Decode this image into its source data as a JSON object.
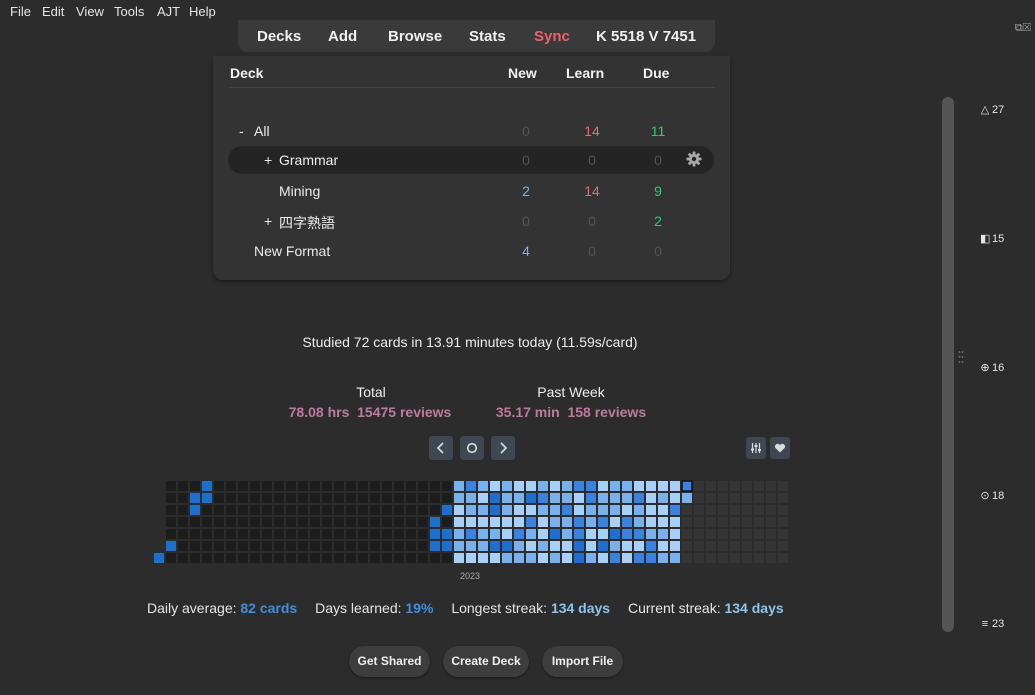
{
  "menu": [
    "File",
    "Edit",
    "View",
    "Tools",
    "AJT",
    "Help"
  ],
  "toolbar": {
    "decks": "Decks",
    "add": "Add",
    "browse": "Browse",
    "stats": "Stats",
    "sync": "Sync",
    "counter": "K 5518 V 7451"
  },
  "deck_table": {
    "headers": {
      "deck": "Deck",
      "new": "New",
      "learn": "Learn",
      "due": "Due"
    },
    "rows": [
      {
        "prefix": "-",
        "name": "All",
        "new": "0",
        "learn": "14",
        "due": "11"
      },
      {
        "prefix": "+",
        "name": "Grammar",
        "new": "0",
        "learn": "0",
        "due": "0"
      },
      {
        "prefix": "",
        "name": "Mining",
        "new": "2",
        "learn": "14",
        "due": "9"
      },
      {
        "prefix": "+",
        "name": "四字熟語",
        "new": "0",
        "learn": "0",
        "due": "2"
      },
      {
        "prefix": "",
        "name": "New Format",
        "new": "4",
        "learn": "0",
        "due": "0"
      }
    ]
  },
  "studied_today": "Studied 72 cards in 13.91 minutes today (11.59s/card)",
  "totals": {
    "total_title": "Total",
    "total_hours": "78.08 hrs",
    "total_reviews": "15475 reviews",
    "week_title": "Past Week",
    "week_minutes": "35.17 min",
    "week_reviews": "158 reviews"
  },
  "heatmap": {
    "year": "2023",
    "colors": [
      "#1d1d1d",
      "#1f6fd1",
      "#3b82e0",
      "#7ab1ec",
      "#a9d0f7",
      "#353535"
    ]
  },
  "summary": {
    "daily_avg_label": "Daily average:",
    "daily_avg_value": "82 cards",
    "days_learned_label": "Days learned:",
    "days_learned_value": "19%",
    "longest_label": "Longest streak:",
    "longest_value": "134 days",
    "current_label": "Current streak:",
    "current_value": "134 days"
  },
  "buttons": {
    "get_shared": "Get Shared",
    "create_deck": "Create Deck",
    "import_file": "Import File"
  },
  "sidebar": [
    {
      "icon": "triangle-icon",
      "value": "27"
    },
    {
      "icon": "square-icon",
      "value": "15"
    },
    {
      "icon": "crosshair-icon",
      "value": "16"
    },
    {
      "icon": "clock-icon",
      "value": "18"
    },
    {
      "icon": "list-icon",
      "value": "23"
    }
  ]
}
